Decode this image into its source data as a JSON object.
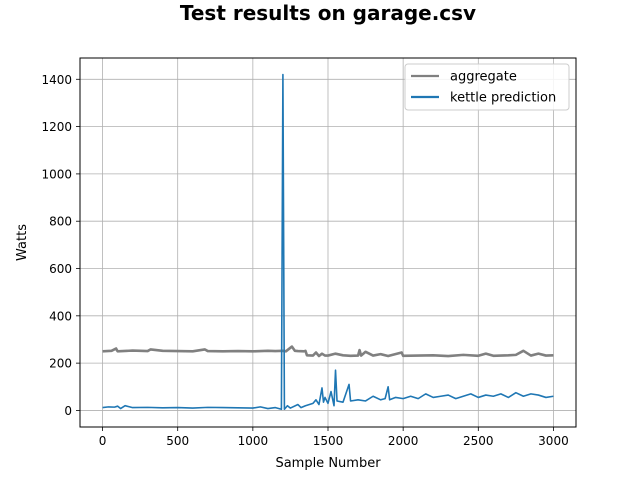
{
  "chart_data": {
    "type": "line",
    "title": "Test results on garage.csv",
    "xlabel": "Sample Number",
    "ylabel": "Watts",
    "xlim": [
      -150,
      3150
    ],
    "ylim": [
      -70,
      1490
    ],
    "xticks": [
      0,
      500,
      1000,
      1500,
      2000,
      2500,
      3000
    ],
    "yticks": [
      0,
      200,
      400,
      600,
      800,
      1000,
      1200,
      1400
    ],
    "grid": true,
    "legend_position": "top-right",
    "series": [
      {
        "name": "aggregate",
        "color": "#808080",
        "x": [
          0,
          60,
          90,
          100,
          200,
          300,
          320,
          400,
          500,
          600,
          680,
          700,
          800,
          900,
          1000,
          1100,
          1150,
          1200,
          1220,
          1260,
          1280,
          1300,
          1340,
          1350,
          1360,
          1400,
          1420,
          1440,
          1460,
          1480,
          1500,
          1550,
          1600,
          1650,
          1700,
          1710,
          1720,
          1750,
          1800,
          1850,
          1900,
          1990,
          2000,
          2100,
          2200,
          2300,
          2400,
          2500,
          2550,
          2600,
          2700,
          2750,
          2800,
          2850,
          2900,
          2950,
          3000
        ],
        "y": [
          250,
          252,
          262,
          250,
          253,
          251,
          258,
          252,
          251,
          250,
          258,
          251,
          250,
          251,
          250,
          252,
          251,
          252,
          250,
          270,
          252,
          251,
          250,
          252,
          233,
          232,
          245,
          230,
          240,
          232,
          232,
          240,
          233,
          231,
          232,
          255,
          232,
          248,
          232,
          238,
          230,
          245,
          231,
          232,
          233,
          230,
          235,
          231,
          240,
          231,
          233,
          235,
          252,
          232,
          240,
          232,
          233
        ]
      },
      {
        "name": "kettle prediction",
        "color": "#1f77b4",
        "x": [
          0,
          40,
          80,
          100,
          120,
          150,
          200,
          300,
          400,
          500,
          600,
          700,
          800,
          900,
          1000,
          1050,
          1100,
          1150,
          1190,
          1200,
          1210,
          1230,
          1250,
          1300,
          1320,
          1350,
          1400,
          1420,
          1440,
          1460,
          1470,
          1480,
          1500,
          1520,
          1540,
          1550,
          1560,
          1600,
          1640,
          1650,
          1700,
          1750,
          1800,
          1850,
          1880,
          1900,
          1910,
          1950,
          2000,
          2050,
          2100,
          2150,
          2200,
          2250,
          2300,
          2350,
          2400,
          2450,
          2500,
          2550,
          2600,
          2650,
          2700,
          2750,
          2800,
          2850,
          2900,
          2950,
          3000
        ],
        "y": [
          12,
          15,
          14,
          18,
          8,
          20,
          12,
          13,
          11,
          12,
          10,
          13,
          12,
          11,
          10,
          15,
          8,
          12,
          5,
          1420,
          5,
          20,
          10,
          25,
          12,
          20,
          30,
          45,
          25,
          95,
          35,
          55,
          30,
          80,
          20,
          170,
          40,
          35,
          110,
          40,
          45,
          40,
          60,
          45,
          50,
          100,
          45,
          55,
          50,
          60,
          50,
          70,
          55,
          60,
          65,
          50,
          60,
          70,
          55,
          65,
          60,
          70,
          55,
          75,
          60,
          70,
          65,
          55,
          60
        ]
      }
    ]
  }
}
